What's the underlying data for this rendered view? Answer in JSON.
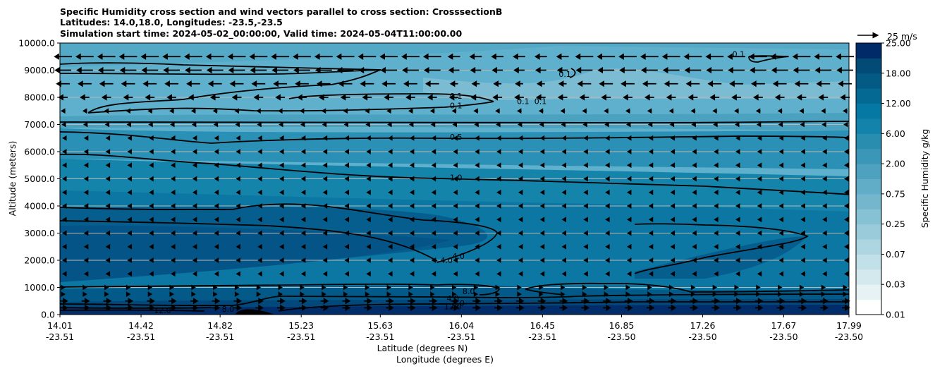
{
  "chart_data": {
    "type": "heatmap",
    "title_lines": [
      "Specific Humidity cross section and wind vectors parallel to cross section: CrosssectionB",
      "Latitudes: 14.0,18.0, Longitudes: -23.5,-23.5",
      "Simulation start time: 2024-05-02_00:00:00, Valid time: 2024-05-04T11:00:00.00"
    ],
    "ylabel": "Altitude (meters)",
    "xlabel_lat": "Latitude (degrees N)",
    "xlabel_lon": "Longitude (degrees E)",
    "ylim": [
      0,
      10000
    ],
    "y_ticks": [
      0,
      1000,
      2000,
      3000,
      4000,
      5000,
      6000,
      7000,
      8000,
      9000,
      10000
    ],
    "y_tick_labels": [
      "0.0",
      "1000.0",
      "2000.0",
      "3000.0",
      "4000.0",
      "5000.0",
      "6000.0",
      "7000.0",
      "8000.0",
      "9000.0",
      "10000.0"
    ],
    "x_ticks_lat": [
      "14.01",
      "14.42",
      "14.82",
      "15.23",
      "15.63",
      "16.04",
      "16.45",
      "16.85",
      "17.26",
      "17.67",
      "17.99"
    ],
    "x_ticks_lon": [
      "-23.51",
      "-23.51",
      "-23.51",
      "-23.51",
      "-23.51",
      "-23.51",
      "-23.51",
      "-23.50",
      "-23.50",
      "-23.50",
      "-23.50"
    ],
    "x_tick_fraction": [
      0,
      0.1028,
      0.203,
      0.3058,
      0.406,
      0.5088,
      0.6116,
      0.7118,
      0.8146,
      0.9173,
      1.0
    ],
    "colorbar": {
      "label": "Specific Humidity g/kg",
      "tick_labels": [
        "0.01",
        "0.03",
        "0.07",
        "0.25",
        "0.75",
        "2.00",
        "6.00",
        "12.00",
        "18.00",
        "25.00"
      ],
      "levels_count": 18,
      "colors": [
        "#ffffff",
        "#e6f2f4",
        "#d4e9ee",
        "#c1e0e8",
        "#aed6e2",
        "#9acbdb",
        "#87c1d4",
        "#74b7cd",
        "#61acc6",
        "#4ea2bf",
        "#3b97b8",
        "#288daf",
        "#1483ab",
        "#0579a3",
        "#046993",
        "#035a84",
        "#024b76",
        "#012b68"
      ]
    },
    "quiver_key": "25 m/s",
    "contour_labels": [
      {
        "text": "0.1",
        "alt": 8000,
        "frac": 0.502
      },
      {
        "text": "0.1",
        "alt": 7650,
        "frac": 0.502
      },
      {
        "text": "0.1",
        "alt": 7800,
        "frac": 0.587
      },
      {
        "text": "0.1",
        "alt": 7800,
        "frac": 0.609
      },
      {
        "text": "0.1",
        "alt": 8800,
        "frac": 0.64
      },
      {
        "text": "0.1",
        "alt": 9550,
        "frac": 0.86
      },
      {
        "text": "0.5",
        "alt": 6500,
        "frac": 0.502
      },
      {
        "text": "1.0",
        "alt": 5000,
        "frac": 0.502
      },
      {
        "text": "4.0",
        "alt": 1950,
        "frac": 0.49
      },
      {
        "text": "4.0",
        "alt": 2100,
        "frac": 0.505
      },
      {
        "text": "4.0",
        "alt": 550,
        "frac": 0.498
      },
      {
        "text": "8.0",
        "alt": 800,
        "frac": 0.518
      },
      {
        "text": "8.0",
        "alt": 380,
        "frac": 0.505
      },
      {
        "text": "12.0",
        "alt": 250,
        "frac": 0.498
      },
      {
        "text": "8.0",
        "alt": 150,
        "frac": 0.213
      },
      {
        "text": "12.0",
        "alt": 100,
        "frac": 0.13
      }
    ]
  }
}
